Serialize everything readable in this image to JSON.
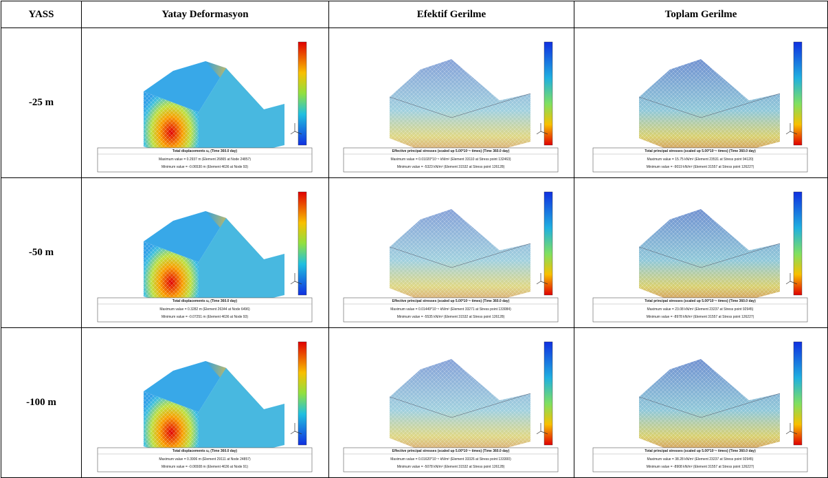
{
  "header": [
    "YASS",
    "Yatay Deformasyon",
    "Efektif Gerilme",
    "Toplam Gerilme"
  ],
  "rows": [
    {
      "label": "-25 m",
      "cells": [
        {
          "title": "Total displacements uₓ (Time 360.0 day)",
          "max": "Maximum value = 0.2937 m (Element 26865 at Node 24857)",
          "min": "Minimum value = -0.06530 m (Element 4636 at Node 93)"
        },
        {
          "title": "Effective principal stresses (scaled up 5.00*10⁻⁶ times) (Time 360.0 day)",
          "max": "Maximum value = 0.01020*10⁻⁶ kN/m² (Element 33110 at Stress point 132463)",
          "min": "Minimum value = -5323 kN/m² (Element 31532 at Stress point 126128)"
        },
        {
          "title": "Total principal stresses (scaled up 5.00*10⁻⁶ times) (Time 360.0 day)",
          "max": "Maximum value = 15.75 kN/m² (Element 23531 at Stress point 94120)",
          "min": "Minimum value = -9019 kN/m² (Element 31557 at Stress point 126227)"
        }
      ]
    },
    {
      "label": "-50 m",
      "cells": [
        {
          "title": "Total displacements uₓ (Time 360.0 day)",
          "max": "Maximum value = 0.3282 m (Element 26344 at Node 6496)",
          "min": "Minimum value = -0.07251 m (Element 4636 at Node 93)"
        },
        {
          "title": "Effective principal stresses (scaled up 5.00*10⁻⁶ times) (Time 360.0 day)",
          "max": "Maximum value = 0.01449*10⁻⁶ kN/m² (Element 33271 at Stress point 133084)",
          "min": "Minimum value = -5535 kN/m² (Element 31532 at Stress point 126128)"
        },
        {
          "title": "Total principal stresses (scaled up 5.00*10⁻⁶ times) (Time 360.0 day)",
          "max": "Maximum value = 23.08 kN/m² (Element 23237 at Stress point 92945)",
          "min": "Minimum value = -8978 kN/m² (Element 31557 at Stress point 126227)"
        }
      ]
    },
    {
      "label": "-100 m",
      "cells": [
        {
          "title": "Total displacements uₓ (Time 360.0 day)",
          "max": "Maximum value = 0.3906 m (Element 29111 at Node 24857)",
          "min": "Minimum value = -0.06508 m (Element 4636 at Node 91)"
        },
        {
          "title": "Effective principal stresses (scaled up 5.00*10⁻⁶ times) (Time 360.0 day)",
          "max": "Maximum value = 0.01620*10⁻⁶ kN/m² (Element 33326 at Stress point 133300)",
          "min": "Minimum value = -5078 kN/m² (Element 31532 at Stress point 126128)"
        },
        {
          "title": "Total principal stresses (scaled up 5.00*10⁻⁶ times) (Time 360.0 day)",
          "max": "Maximum value = 38.28 kN/m² (Element 23237 at Stress point 92945)",
          "min": "Minimum value = -8908 kN/m² (Element 31557 at Stress point 126227)"
        }
      ]
    }
  ]
}
